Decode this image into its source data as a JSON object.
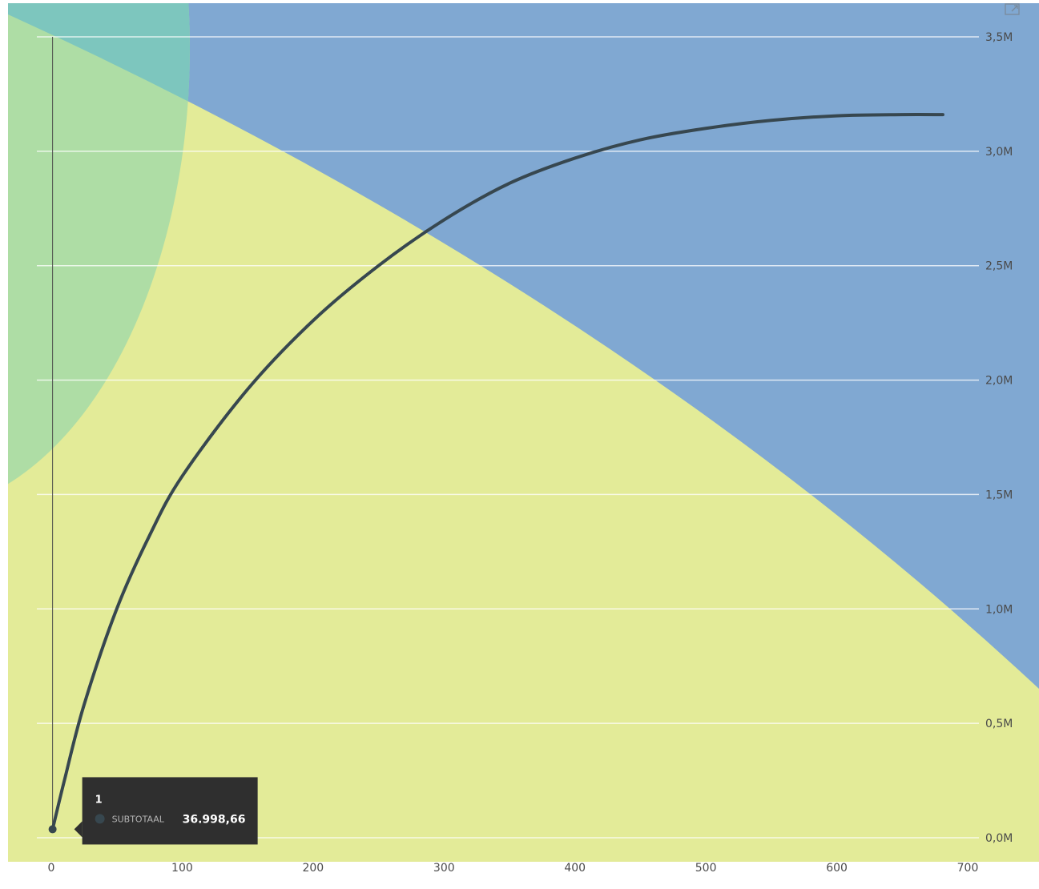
{
  "chart_data": {
    "type": "line",
    "x": [
      1,
      10,
      25,
      50,
      75,
      100,
      150,
      200,
      250,
      300,
      350,
      400,
      450,
      500,
      550,
      600,
      650,
      681
    ],
    "series": [
      {
        "name": "SUBTOTAAL",
        "values": [
          36998.66,
          250000,
          580000,
          1000000,
          1320000,
          1580000,
          1960000,
          2260000,
          2500000,
          2700000,
          2860000,
          2970000,
          3050000,
          3100000,
          3135000,
          3155000,
          3160000,
          3160000
        ]
      }
    ],
    "xlim": [
      0,
      700
    ],
    "ylim": [
      0,
      3500000
    ],
    "x_ticks": [
      0,
      100,
      200,
      300,
      400,
      500,
      600,
      700
    ],
    "x_tick_labels": [
      "0",
      "100",
      "200",
      "300",
      "400",
      "500",
      "600",
      "700"
    ],
    "y_ticks": [
      0,
      500000,
      1000000,
      1500000,
      2000000,
      2500000,
      3000000,
      3500000
    ],
    "y_tick_labels": [
      "0,0M",
      "0,5M",
      "1,0M",
      "1,5M",
      "2,0M",
      "2,5M",
      "3,0M",
      "3,5M"
    ],
    "y_axis_position": "right",
    "grid": true,
    "line_color": "#37474f",
    "background_zones": [
      {
        "name": "blue",
        "color": "#80a8d2"
      },
      {
        "name": "yellow",
        "color": "#e3eb98"
      },
      {
        "name": "green",
        "color": "#aedda5"
      },
      {
        "name": "teal",
        "color": "#7dc6be"
      }
    ],
    "tooltip": {
      "title": "1",
      "series_label": "SUBTOTAAL",
      "value": "36.998,66",
      "x": 1,
      "y": 36998.66
    }
  },
  "icons": {
    "focus_mode": "focus-mode-icon"
  }
}
